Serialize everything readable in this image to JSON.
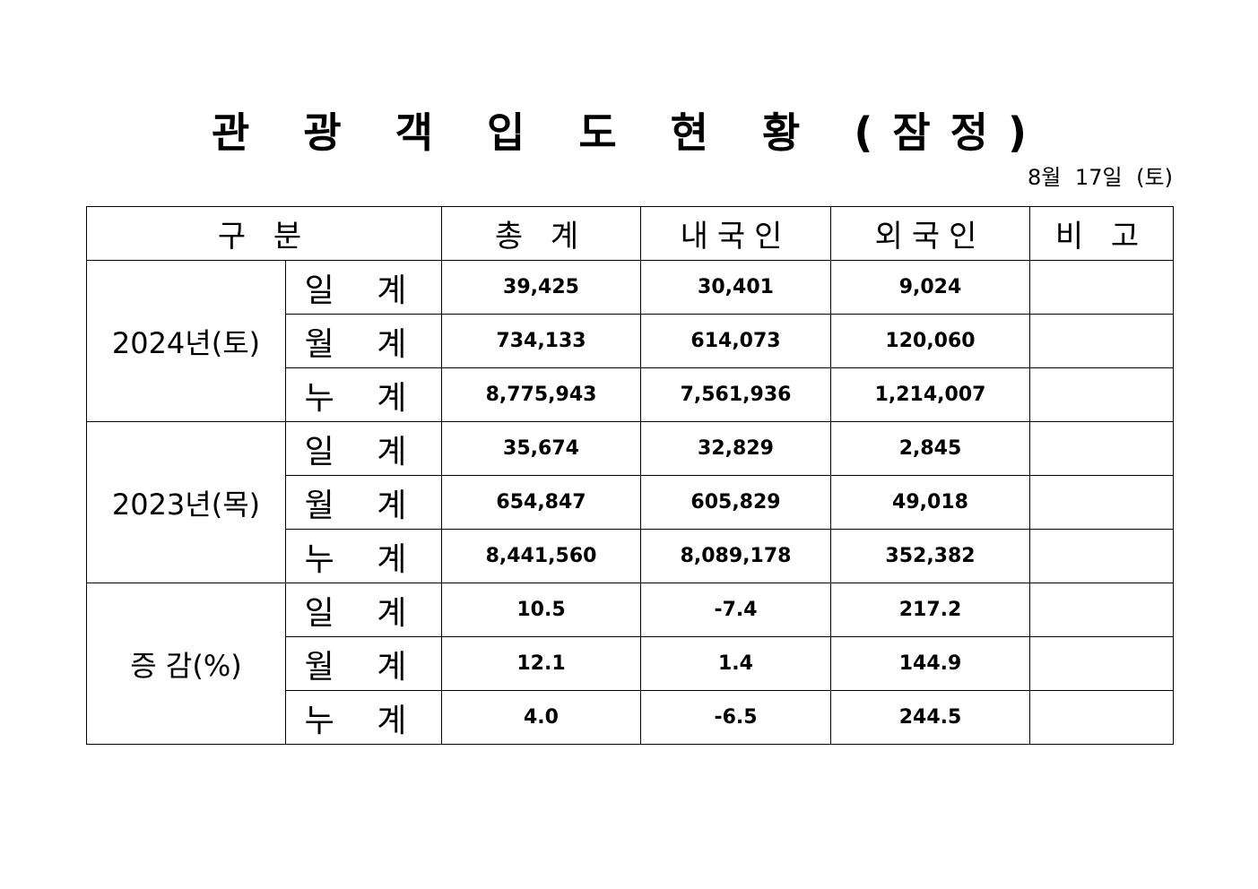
{
  "header": {
    "title": "관 광 객 입 도 현 황 (잠정)",
    "date": "8월 17일 (토)"
  },
  "table": {
    "columns": [
      "구 분",
      "총 계",
      "내국인",
      "외국인",
      "비 고"
    ],
    "groups": [
      {
        "label": "2024년(토)",
        "rows": [
          {
            "label": "일 계",
            "values": [
              "39,425",
              "30,401",
              "9,024"
            ]
          },
          {
            "label": "월 계",
            "values": [
              "734,133",
              "614,073",
              "120,060"
            ]
          },
          {
            "label": "누 계",
            "values": [
              "8,775,943",
              "7,561,936",
              "1,214,007"
            ]
          }
        ]
      },
      {
        "label": "2023년(목)",
        "rows": [
          {
            "label": "일 계",
            "values": [
              "35,674",
              "32,829",
              "2,845"
            ]
          },
          {
            "label": "월 계",
            "values": [
              "654,847",
              "605,829",
              "49,018"
            ]
          },
          {
            "label": "누 계",
            "values": [
              "8,441,560",
              "8,089,178",
              "352,382"
            ]
          }
        ]
      },
      {
        "label": "증 감(%)",
        "rows": [
          {
            "label": "일 계",
            "values": [
              "10.5",
              "-7.4",
              "217.2"
            ]
          },
          {
            "label": "월 계",
            "values": [
              "12.1",
              "1.4",
              "144.9"
            ]
          },
          {
            "label": "누 계",
            "values": [
              "4.0",
              "-6.5",
              "244.5"
            ]
          }
        ]
      }
    ]
  }
}
